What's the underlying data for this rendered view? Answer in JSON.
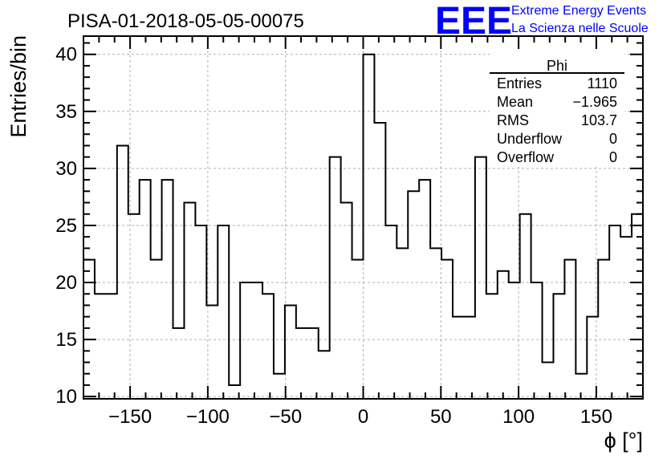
{
  "chart_data": {
    "type": "bar",
    "title": "PISA-01-2018-05-05-00075",
    "xlabel": "ϕ [°]",
    "ylabel": "Entries/bin",
    "xlim": [
      -180,
      180
    ],
    "ylim": [
      9.8,
      41.6
    ],
    "grid": true,
    "xticks": [
      -150,
      -100,
      -50,
      0,
      50,
      100,
      150
    ],
    "yticks": [
      10,
      15,
      20,
      25,
      30,
      35,
      40
    ],
    "bins": {
      "start": -180,
      "width": 7.2,
      "count": 50
    },
    "values": [
      22,
      19,
      19,
      32,
      26,
      29,
      22,
      29,
      16,
      27,
      25,
      18,
      25,
      11,
      20,
      20,
      19,
      12,
      18,
      16,
      16,
      14,
      31,
      27,
      22,
      40,
      34,
      25,
      23,
      28,
      29,
      23,
      22,
      17,
      17,
      31,
      19,
      21,
      20,
      26,
      20,
      13,
      19,
      22,
      12,
      17,
      22,
      25,
      24,
      26
    ],
    "stats": {
      "name": "Phi",
      "rows": [
        {
          "label": "Entries",
          "value": "1110"
        },
        {
          "label": "Mean",
          "value": "−1.965"
        },
        {
          "label": "RMS",
          "value": "103.7"
        },
        {
          "label": "Underflow",
          "value": "0"
        },
        {
          "label": "Overflow",
          "value": "0"
        }
      ]
    },
    "logo": {
      "text": "EEE",
      "line1": "Extreme Energy Events",
      "line2": "La Scienza nelle Scuole",
      "color": "#0000ff"
    }
  }
}
